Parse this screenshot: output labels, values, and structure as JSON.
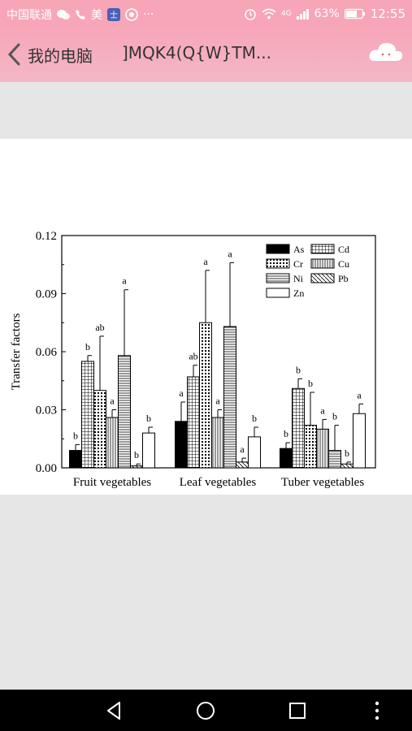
{
  "status_bar": {
    "carrier": "中国联通",
    "app_mark": "美",
    "notification_icons": [
      "wechat-icon",
      "phone-icon",
      "app-badge-icon",
      "media-icon",
      "more-dots-icon"
    ],
    "signal": "4G",
    "battery": "63%",
    "time": "12:55"
  },
  "title_bar": {
    "back_label": "我的电脑",
    "chat_title": "]MQK4(Q{W}TM...",
    "colors": {
      "background": "#f7a6b8"
    }
  },
  "chart_data": {
    "type": "bar",
    "ylabel": "Transfer factors",
    "ylim": [
      0,
      0.12
    ],
    "yticks": [
      "0.00",
      "0.03",
      "0.06",
      "0.09",
      "0.12"
    ],
    "categories": [
      "Fruit vegetables",
      "Leaf vegetables",
      "Tuber vegetables"
    ],
    "legend_position": "top-right",
    "series": [
      {
        "name": "As",
        "values": [
          0.009,
          0.024,
          0.01
        ],
        "errors": [
          0.003,
          0.01,
          0.003
        ],
        "labels": [
          "b",
          "a",
          "b"
        ],
        "pattern": "solid"
      },
      {
        "name": "Cd",
        "values": [
          0.055,
          0.047,
          0.041
        ],
        "errors": [
          0.003,
          0.006,
          0.005
        ],
        "labels": [
          "b",
          "ab",
          "b"
        ],
        "pattern": "grid"
      },
      {
        "name": "Cr",
        "values": [
          0.04,
          0.075,
          0.022
        ],
        "errors": [
          0.028,
          0.027,
          0.017
        ],
        "labels": [
          "ab",
          "a",
          "b"
        ],
        "pattern": "dots"
      },
      {
        "name": "Cu",
        "values": [
          0.026,
          0.026,
          0.02
        ],
        "errors": [
          0.004,
          0.004,
          0.005
        ],
        "labels": [
          "a",
          "a",
          "a"
        ],
        "pattern": "vlines"
      },
      {
        "name": "Ni",
        "values": [
          0.058,
          0.073,
          0.009
        ],
        "errors": [
          0.034,
          0.033,
          0.013
        ],
        "labels": [
          "a",
          "a",
          "b"
        ],
        "pattern": "hlines"
      },
      {
        "name": "Pb",
        "values": [
          0.001,
          0.003,
          0.002
        ],
        "errors": [
          0.001,
          0.002,
          0.001
        ],
        "labels": [
          "b",
          "a",
          "b"
        ],
        "pattern": "diag"
      },
      {
        "name": "Zn",
        "values": [
          0.018,
          0.016,
          0.028
        ],
        "errors": [
          0.003,
          0.005,
          0.005
        ],
        "labels": [
          "b",
          "b",
          "a"
        ],
        "pattern": "white"
      }
    ]
  },
  "nav_bar": {
    "buttons": [
      "back-triangle-icon",
      "home-circle-icon",
      "recents-square-icon",
      "menu-dots-icon"
    ]
  }
}
